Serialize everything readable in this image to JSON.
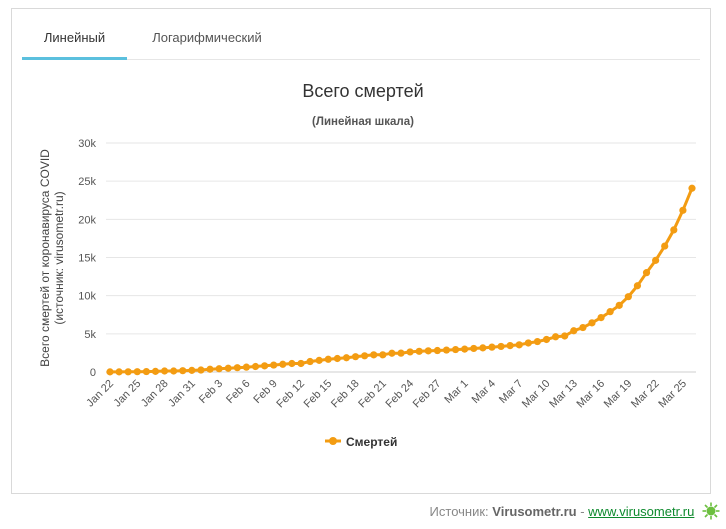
{
  "tabs": [
    {
      "label": "Линейный",
      "active": true
    },
    {
      "label": "Логарифмический",
      "active": false
    }
  ],
  "chart_data": {
    "type": "line",
    "title": "Всего смертей",
    "subtitle": "(Линейная шкала)",
    "ylabel_line1": "Всего смертей от коронавируса COVID",
    "ylabel_line2": "(источник: virusometr.ru)",
    "ylim": [
      0,
      30000
    ],
    "yticks": [
      0,
      5000,
      10000,
      15000,
      20000,
      25000,
      30000
    ],
    "ytick_labels": [
      "0",
      "5k",
      "10k",
      "15k",
      "20k",
      "25k",
      "30k"
    ],
    "xtick_labels": [
      "Jan 22",
      "Jan 25",
      "Jan 28",
      "Jan 31",
      "Feb 3",
      "Feb 6",
      "Feb 9",
      "Feb 12",
      "Feb 15",
      "Feb 18",
      "Feb 21",
      "Feb 24",
      "Feb 27",
      "Mar 1",
      "Mar 4",
      "Mar 7",
      "Mar 10",
      "Mar 13",
      "Mar 16",
      "Mar 19",
      "Mar 22",
      "Mar 25"
    ],
    "x_start": "Jan 22",
    "x_end": "Mar 26",
    "grid": true,
    "legend_position": "bottom",
    "color": "#f39c12",
    "series": [
      {
        "name": "Смертей",
        "values": [
          17,
          18,
          26,
          42,
          56,
          82,
          131,
          133,
          171,
          213,
          259,
          362,
          426,
          492,
          564,
          634,
          719,
          806,
          906,
          1013,
          1113,
          1118,
          1371,
          1523,
          1666,
          1770,
          1868,
          2007,
          2122,
          2247,
          2251,
          2458,
          2469,
          2629,
          2708,
          2770,
          2814,
          2872,
          2941,
          2996,
          3085,
          3160,
          3254,
          3348,
          3460,
          3558,
          3802,
          3988,
          4262,
          4615,
          4720,
          5404,
          5819,
          6440,
          7126,
          7905,
          8733,
          9867,
          11299,
          13015,
          14623,
          16497,
          18615,
          21181,
          24073
        ]
      }
    ]
  },
  "footer": {
    "source_label": "Источник:",
    "brand": "Virusometr.ru",
    "separator": "-",
    "link_text": "www.virusometr.ru"
  }
}
